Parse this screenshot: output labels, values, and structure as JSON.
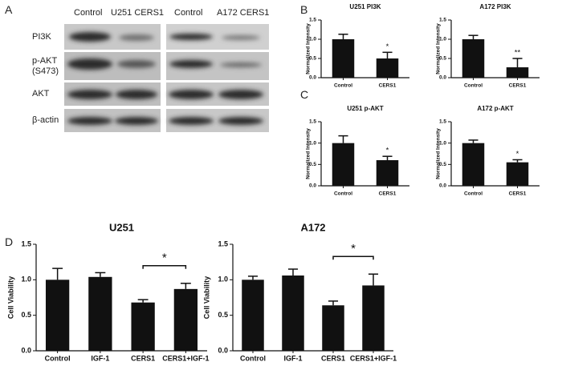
{
  "panel_labels": [
    "A",
    "B",
    "C",
    "D"
  ],
  "blot": {
    "columns": [
      "Control",
      "U251 CERS1",
      "Control",
      "A172 CERS1"
    ],
    "rows": [
      "PI3K",
      "p-AKT (S473)",
      "AKT",
      "β-actin"
    ]
  },
  "chart_data": [
    {
      "type": "bar",
      "title": "U251 PI3K",
      "y_label": "Normalized Intensity",
      "categories": [
        "Control",
        "CERS1"
      ],
      "values": [
        1.0,
        0.5
      ],
      "errors": [
        0.13,
        0.16
      ],
      "color": "#111111",
      "ylim": [
        0,
        1.5
      ],
      "yticks": [
        {
          "value": 0,
          "label": "0.0"
        },
        0.5,
        {
          "value": 1,
          "label": "1.0"
        },
        1.5
      ],
      "annotations": [
        {
          "text": "*",
          "categories": [
            "CERS1"
          ]
        }
      ]
    },
    {
      "type": "bar",
      "title": "A172 PI3K",
      "y_label": "Normalized Intensity",
      "categories": [
        "Control",
        "CERS1"
      ],
      "values": [
        1.0,
        0.27
      ],
      "errors": [
        0.1,
        0.23
      ],
      "color": "#111111",
      "ylim": [
        0,
        1.5
      ],
      "yticks": [
        {
          "value": 0,
          "label": "0.0"
        },
        0.5,
        {
          "value": 1,
          "label": "1.0"
        },
        1.5
      ],
      "annotations": [
        {
          "text": "**",
          "categories": [
            "CERS1"
          ]
        }
      ]
    },
    {
      "type": "bar",
      "title": "U251 p-AKT",
      "y_label": "Normalized Intensity",
      "categories": [
        "Control",
        "CERS1"
      ],
      "values": [
        1.0,
        0.6
      ],
      "errors": [
        0.17,
        0.09
      ],
      "color": "#111111",
      "ylim": [
        0,
        1.5
      ],
      "yticks": [
        {
          "value": 0,
          "label": "0.0"
        },
        0.5,
        {
          "value": 1,
          "label": "1.0"
        },
        1.5
      ],
      "annotations": [
        {
          "text": "*",
          "categories": [
            "CERS1"
          ]
        }
      ]
    },
    {
      "type": "bar",
      "title": "A172 p-AKT",
      "y_label": "Normalized Intensity",
      "categories": [
        "Control",
        "CERS1"
      ],
      "values": [
        1.0,
        0.55
      ],
      "errors": [
        0.07,
        0.06
      ],
      "color": "#111111",
      "ylim": [
        0,
        1.5
      ],
      "yticks": [
        {
          "value": 0,
          "label": "0.0"
        },
        0.5,
        {
          "value": 1,
          "label": "1.0"
        },
        1.5
      ],
      "annotations": [
        {
          "text": "*",
          "categories": [
            "CERS1"
          ]
        }
      ]
    },
    {
      "type": "bar",
      "title": "U251",
      "y_label": "Cell Viability",
      "categories": [
        "Control",
        "IGF-1",
        "CERS1",
        "CERS1+IGF-1"
      ],
      "values": [
        1.0,
        1.04,
        0.68,
        0.87
      ],
      "errors": [
        0.16,
        0.06,
        0.04,
        0.08
      ],
      "color": "#111111",
      "ylim": [
        0,
        1.5
      ],
      "yticks": [
        {
          "value": 0,
          "label": "0.0"
        },
        0.5,
        {
          "value": 1,
          "label": "1.0"
        },
        1.5
      ],
      "annotations": [
        {
          "text": "*",
          "categories": [
            "CERS1",
            "CERS1+IGF-1"
          ]
        }
      ]
    },
    {
      "type": "bar",
      "title": "A172",
      "y_label": "Cell Viability",
      "categories": [
        "Control",
        "IGF-1",
        "CERS1",
        "CERS1+IGF-1"
      ],
      "values": [
        1.0,
        1.06,
        0.64,
        0.92
      ],
      "errors": [
        0.05,
        0.09,
        0.06,
        0.16
      ],
      "color": "#111111",
      "ylim": [
        0,
        1.5
      ],
      "yticks": [
        {
          "value": 0,
          "label": "0.0"
        },
        0.5,
        {
          "value": 1,
          "label": "1.0"
        },
        1.5
      ],
      "annotations": [
        {
          "text": "*",
          "categories": [
            "CERS1",
            "CERS1+IGF-1"
          ]
        }
      ]
    }
  ]
}
